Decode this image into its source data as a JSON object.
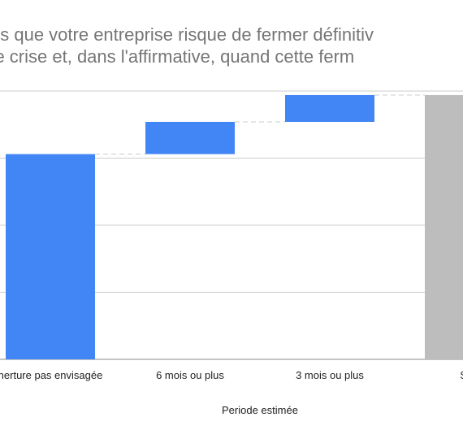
{
  "title_lines": [
    "us que votre entreprise risque de fermer définitiv",
    "cette crise et, dans l'affirmative, quand cette ferm"
  ],
  "chart_data": {
    "type": "waterfall",
    "title": "us que votre entreprise risque de fermer définitiv cette crise et, dans l'affirmative, quand cette ferm",
    "xlabel": "Periode estimée",
    "ylabel": "",
    "ylim": [
      0,
      100
    ],
    "grid": true,
    "categories": [
      "nerture pas envisagée",
      "6 mois ou plus",
      "3 mois ou plus",
      "Sub"
    ],
    "steps": [
      {
        "label": "nerture pas envisagée",
        "start": 0,
        "end": 76.5,
        "kind": "increase"
      },
      {
        "label": "6 mois ou plus",
        "start": 76.5,
        "end": 88.5,
        "kind": "increase"
      },
      {
        "label": "3 mois ou plus",
        "start": 88.5,
        "end": 98.5,
        "kind": "increase"
      },
      {
        "label": "Sub",
        "start": 0,
        "end": 98.5,
        "kind": "subtotal"
      }
    ],
    "colors": {
      "increase": "#4285f4",
      "subtotal": "#bdbdbd",
      "grid": "#cccccc",
      "connector": "#cccccc",
      "text": "#222222",
      "title": "#757575"
    }
  }
}
